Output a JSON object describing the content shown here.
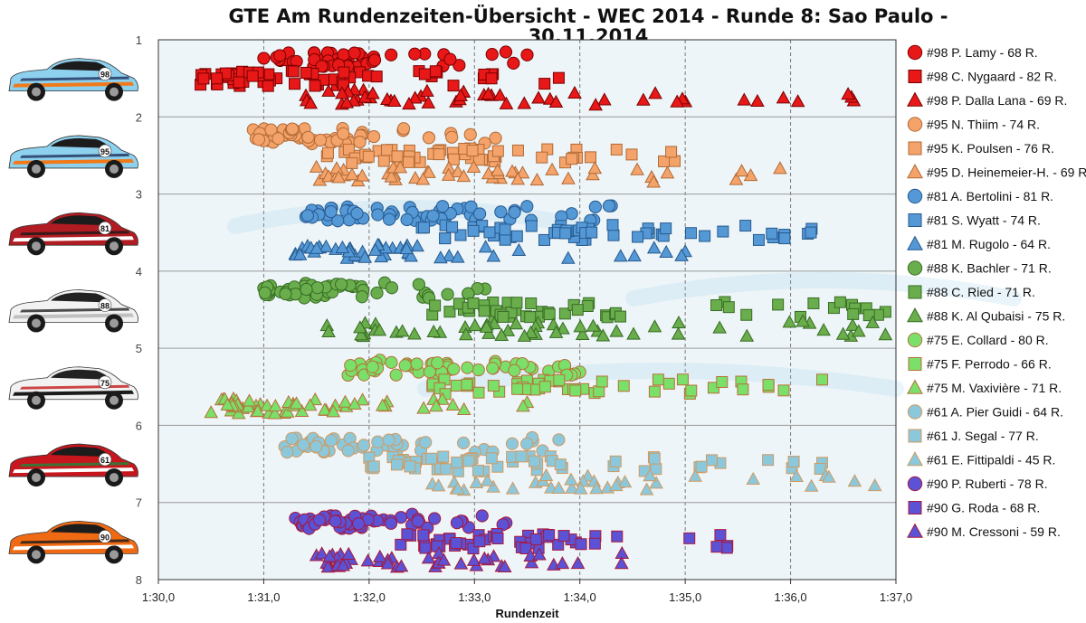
{
  "chart_data": {
    "type": "scatter",
    "title_line1": "GTE Am Rundenzeiten-Übersicht - WEC 2014 - Runde 8: Sao Paulo -",
    "title_line2": "30.11.2014",
    "xlabel": "Rundenzeit",
    "xlim": [
      90.0,
      97.0
    ],
    "ylim": [
      1,
      8
    ],
    "x_ticks": [
      "1:30,0",
      "1:31,0",
      "1:32,0",
      "1:33,0",
      "1:34,0",
      "1:35,0",
      "1:36,0",
      "1:37,0"
    ],
    "y_ticks": [
      "1",
      "2",
      "3",
      "4",
      "5",
      "6",
      "7",
      "8"
    ],
    "grid": "vertical dashed",
    "legend": "right",
    "cars": [
      {
        "number": "98",
        "livery": "gulf",
        "color": "#e81818",
        "edge": "#7a0000"
      },
      {
        "number": "95",
        "livery": "gulf",
        "color": "#f4a36a",
        "edge": "#b06a36"
      },
      {
        "number": "81",
        "livery": "ferrari",
        "color": "#5598d6",
        "edge": "#255a8e"
      },
      {
        "number": "88",
        "livery": "porsche-white",
        "color": "#6aad4c",
        "edge": "#376c24"
      },
      {
        "number": "75",
        "livery": "porsche-black",
        "color": "#7ae06a",
        "edge": "#b8703a"
      },
      {
        "number": "61",
        "livery": "ferrari-red",
        "color": "#8cc8dc",
        "edge": "#d09a60"
      },
      {
        "number": "90",
        "livery": "orange",
        "color": "#5b52d6",
        "edge": "#a8183a"
      }
    ],
    "series": [
      {
        "name": "#98 P. Lamy - 68 R.",
        "car": 0,
        "marker": "circle",
        "row": 1.25,
        "min": 91.0,
        "max": 93.5,
        "count": 48,
        "seed": 11
      },
      {
        "name": "#98 C. Nygaard - 82 R.",
        "car": 0,
        "marker": "square",
        "row": 1.5,
        "min": 90.4,
        "max": 93.8,
        "count": 60,
        "seed": 12
      },
      {
        "name": "#98 P. Dalla Lana - 69 R.",
        "car": 0,
        "marker": "triangle",
        "row": 1.75,
        "min": 91.4,
        "max": 96.6,
        "count": 52,
        "seed": 13
      },
      {
        "name": "#95 N. Thiim - 74 R.",
        "car": 1,
        "marker": "circle",
        "row": 2.25,
        "min": 90.9,
        "max": 93.2,
        "count": 55,
        "seed": 21
      },
      {
        "name": "#95 K. Poulsen - 76 R.",
        "car": 1,
        "marker": "square",
        "row": 2.5,
        "min": 91.6,
        "max": 94.9,
        "count": 56,
        "seed": 22
      },
      {
        "name": "#95 D. Heinemeier-H. - 69 R.",
        "car": 1,
        "marker": "triangle",
        "row": 2.75,
        "min": 91.5,
        "max": 95.9,
        "count": 50,
        "seed": 23
      },
      {
        "name": "#81 A. Bertolini - 81 R.",
        "car": 2,
        "marker": "circle",
        "row": 3.25,
        "min": 91.4,
        "max": 94.3,
        "count": 60,
        "seed": 31
      },
      {
        "name": "#81 S. Wyatt - 74 R.",
        "car": 2,
        "marker": "square",
        "row": 3.5,
        "min": 92.5,
        "max": 96.2,
        "count": 56,
        "seed": 32
      },
      {
        "name": "#81 M. Rugolo - 64 R.",
        "car": 2,
        "marker": "triangle",
        "row": 3.75,
        "min": 91.3,
        "max": 95.0,
        "count": 48,
        "seed": 33
      },
      {
        "name": "#88 K. Bachler - 71 R.",
        "car": 3,
        "marker": "circle",
        "row": 4.25,
        "min": 91.0,
        "max": 93.1,
        "count": 52,
        "seed": 41
      },
      {
        "name": "#88 C. Ried - 71 R.",
        "car": 3,
        "marker": "square",
        "row": 4.5,
        "min": 92.6,
        "max": 96.9,
        "count": 54,
        "seed": 42
      },
      {
        "name": "#88 K. Al Qubaisi - 75 R.",
        "car": 3,
        "marker": "triangle",
        "row": 4.75,
        "min": 91.6,
        "max": 96.9,
        "count": 56,
        "seed": 43
      },
      {
        "name": "#75 E. Collard - 80 R.",
        "car": 4,
        "marker": "circle",
        "row": 5.25,
        "min": 91.8,
        "max": 94.0,
        "count": 58,
        "seed": 51
      },
      {
        "name": "#75 F. Perrodo - 66 R.",
        "car": 4,
        "marker": "square",
        "row": 5.5,
        "min": 92.6,
        "max": 96.3,
        "count": 50,
        "seed": 52
      },
      {
        "name": "#75 M. Vaxivière - 71 R.",
        "car": 4,
        "marker": "triangle",
        "row": 5.75,
        "min": 90.5,
        "max": 93.5,
        "count": 54,
        "seed": 53
      },
      {
        "name": "#61 A. Pier Guidi - 64 R.",
        "car": 5,
        "marker": "circle",
        "row": 6.25,
        "min": 91.2,
        "max": 93.8,
        "count": 48,
        "seed": 61
      },
      {
        "name": "#61 J. Segal - 77 R.",
        "car": 5,
        "marker": "square",
        "row": 6.5,
        "min": 92.0,
        "max": 96.3,
        "count": 58,
        "seed": 62
      },
      {
        "name": "#61 E. Fittipaldi - 45 R.",
        "car": 5,
        "marker": "triangle",
        "row": 6.75,
        "min": 92.6,
        "max": 96.8,
        "count": 38,
        "seed": 63
      },
      {
        "name": "#90 P. Ruberti - 78 R.",
        "car": 6,
        "marker": "circle",
        "row": 7.25,
        "min": 91.3,
        "max": 93.3,
        "count": 58,
        "seed": 71
      },
      {
        "name": "#90 G. Roda - 68 R.",
        "car": 6,
        "marker": "square",
        "row": 7.5,
        "min": 92.3,
        "max": 95.4,
        "count": 52,
        "seed": 72
      },
      {
        "name": "#90 M. Cressoni - 59 R.",
        "car": 6,
        "marker": "triangle",
        "row": 7.75,
        "min": 91.5,
        "max": 94.4,
        "count": 46,
        "seed": 73
      }
    ]
  }
}
